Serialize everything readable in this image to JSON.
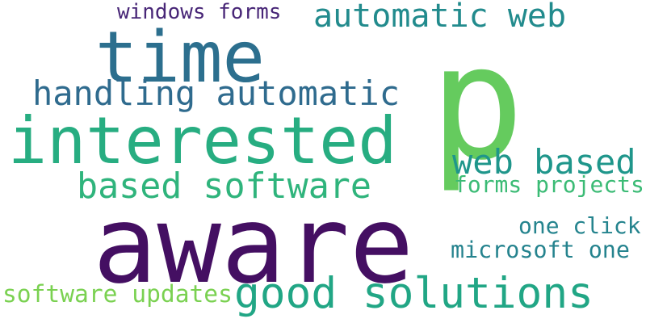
{
  "word_cloud": {
    "words": [
      {
        "text": "aware",
        "color": "#440f62"
      },
      {
        "text": "p",
        "color": "#65cb5e"
      },
      {
        "text": "interested",
        "color": "#27ad81"
      },
      {
        "text": "time",
        "color": "#2c6f8e"
      },
      {
        "text": "good solutions",
        "color": "#21a685"
      },
      {
        "text": "automatic web",
        "color": "#228b8d"
      },
      {
        "text": "handling automatic",
        "color": "#2f6b8e"
      },
      {
        "text": "based software",
        "color": "#2fb47c"
      },
      {
        "text": "web based",
        "color": "#1f968b"
      },
      {
        "text": "windows forms",
        "color": "#482677"
      },
      {
        "text": "forms projects",
        "color": "#3bbb75"
      },
      {
        "text": "one click",
        "color": "#25848e"
      },
      {
        "text": "microsoft one",
        "color": "#25838e"
      },
      {
        "text": "software updates",
        "color": "#7ad151"
      }
    ]
  }
}
